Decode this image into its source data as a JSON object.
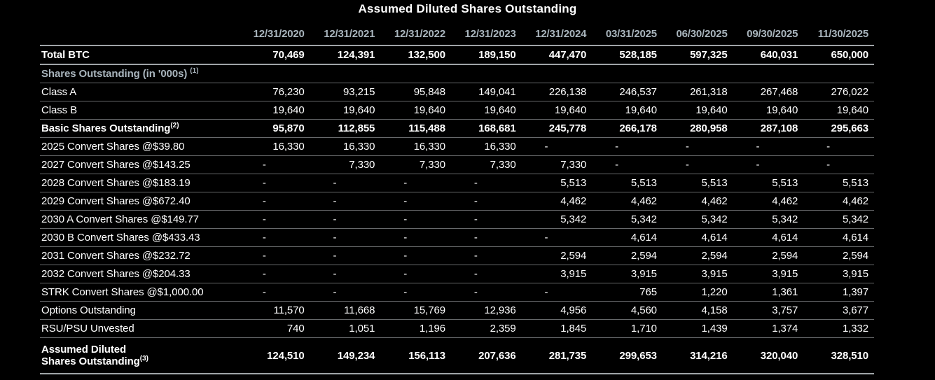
{
  "title": "Assumed Diluted Shares Outstanding",
  "colors": {
    "background": "#000000",
    "text": "#ffffff",
    "header_accent": "#a9b5bd",
    "line_strong": "#9fa4a7",
    "line_weak": "#67696b"
  },
  "chart_data": {
    "type": "table",
    "title": "Assumed Diluted Shares Outstanding",
    "columns": [
      "12/31/2020",
      "12/31/2021",
      "12/31/2022",
      "12/31/2023",
      "12/31/2024",
      "03/31/2025",
      "06/30/2025",
      "09/30/2025",
      "11/30/2025"
    ],
    "rows": [
      {
        "label": "Total BTC",
        "sup": "",
        "type": "total",
        "values": [
          "70,469",
          "124,391",
          "132,500",
          "189,150",
          "447,470",
          "528,185",
          "597,325",
          "640,031",
          "650,000"
        ]
      },
      {
        "label": "Shares Outstanding (in '000s)",
        "sup": "(1)",
        "type": "section",
        "values": []
      },
      {
        "label": "Class A",
        "sup": "",
        "type": "data",
        "values": [
          "76,230",
          "93,215",
          "95,848",
          "149,041",
          "226,138",
          "246,537",
          "261,318",
          "267,468",
          "276,022"
        ]
      },
      {
        "label": "Class B",
        "sup": "",
        "type": "data",
        "values": [
          "19,640",
          "19,640",
          "19,640",
          "19,640",
          "19,640",
          "19,640",
          "19,640",
          "19,640",
          "19,640"
        ]
      },
      {
        "label": "Basic Shares Outstanding",
        "sup": "(2)",
        "type": "subtotal",
        "values": [
          "95,870",
          "112,855",
          "115,488",
          "168,681",
          "245,778",
          "266,178",
          "280,958",
          "287,108",
          "295,663"
        ]
      },
      {
        "label": "2025 Convert Shares @$39.80",
        "sup": "",
        "type": "data",
        "values": [
          "16,330",
          "16,330",
          "16,330",
          "16,330",
          "-",
          "-",
          "-",
          "-",
          "-"
        ]
      },
      {
        "label": "2027 Convert Shares @$143.25",
        "sup": "",
        "type": "data",
        "values": [
          "-",
          "7,330",
          "7,330",
          "7,330",
          "7,330",
          "-",
          "-",
          "-",
          "-"
        ]
      },
      {
        "label": "2028 Convert Shares @$183.19",
        "sup": "",
        "type": "data",
        "values": [
          "-",
          "-",
          "-",
          "-",
          "5,513",
          "5,513",
          "5,513",
          "5,513",
          "5,513"
        ]
      },
      {
        "label": "2029 Convert Shares @$672.40",
        "sup": "",
        "type": "data",
        "values": [
          "-",
          "-",
          "-",
          "-",
          "4,462",
          "4,462",
          "4,462",
          "4,462",
          "4,462"
        ]
      },
      {
        "label": "2030 A Convert Shares @$149.77",
        "sup": "",
        "type": "data",
        "values": [
          "-",
          "-",
          "-",
          "-",
          "5,342",
          "5,342",
          "5,342",
          "5,342",
          "5,342"
        ]
      },
      {
        "label": "2030 B Convert Shares @$433.43",
        "sup": "",
        "type": "data",
        "values": [
          "-",
          "-",
          "-",
          "-",
          "-",
          "4,614",
          "4,614",
          "4,614",
          "4,614"
        ]
      },
      {
        "label": "2031 Convert Shares @$232.72",
        "sup": "",
        "type": "data",
        "values": [
          "-",
          "-",
          "-",
          "-",
          "2,594",
          "2,594",
          "2,594",
          "2,594",
          "2,594"
        ]
      },
      {
        "label": "2032 Convert Shares @$204.33",
        "sup": "",
        "type": "data",
        "values": [
          "-",
          "-",
          "-",
          "-",
          "3,915",
          "3,915",
          "3,915",
          "3,915",
          "3,915"
        ]
      },
      {
        "label": "STRK Convert Shares @$1,000.00",
        "sup": "",
        "type": "data",
        "values": [
          "-",
          "-",
          "-",
          "-",
          "-",
          "765",
          "1,220",
          "1,361",
          "1,397"
        ]
      },
      {
        "label": "Options Outstanding",
        "sup": "",
        "type": "data",
        "values": [
          "11,570",
          "11,668",
          "15,769",
          "12,936",
          "4,956",
          "4,560",
          "4,158",
          "3,757",
          "3,677"
        ]
      },
      {
        "label": "RSU/PSU Unvested",
        "sup": "",
        "type": "data",
        "values": [
          "740",
          "1,051",
          "1,196",
          "2,359",
          "1,845",
          "1,710",
          "1,439",
          "1,374",
          "1,332"
        ]
      },
      {
        "label_lines": [
          "Assumed Diluted",
          "Shares Outstanding"
        ],
        "sup": "(3)",
        "type": "grand_total",
        "values": [
          "124,510",
          "149,234",
          "156,113",
          "207,636",
          "281,735",
          "299,653",
          "314,216",
          "320,040",
          "328,510"
        ]
      }
    ]
  }
}
